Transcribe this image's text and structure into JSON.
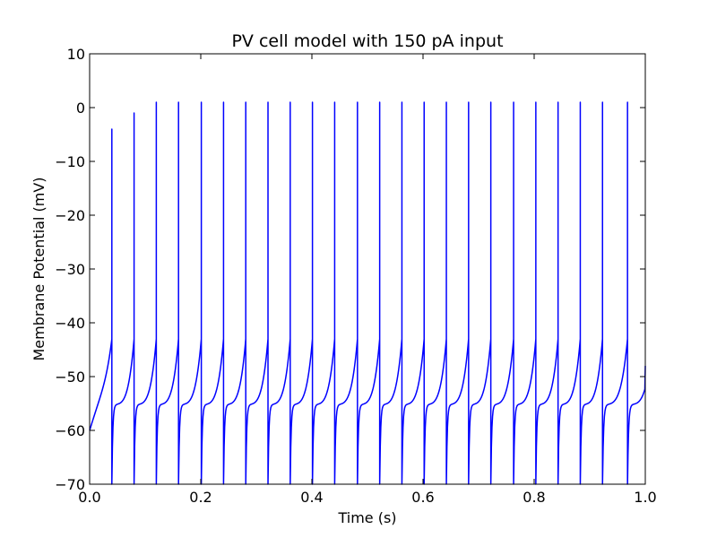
{
  "chart_data": {
    "type": "line",
    "title": "PV cell model with 150 pA input",
    "xlabel": "Time (s)",
    "ylabel": "Membrane Potential (mV)",
    "xlim": [
      0.0,
      1.0
    ],
    "ylim": [
      -70,
      10
    ],
    "x_ticks": [
      "0.0",
      "0.2",
      "0.4",
      "0.6",
      "0.8",
      "1.0"
    ],
    "y_ticks": [
      "−70",
      "−60",
      "−50",
      "−40",
      "−30",
      "−20",
      "−10",
      "0",
      "10"
    ],
    "grid": false,
    "line_color": "#0000ff",
    "series": [
      {
        "initial_potential_mV": -60,
        "threshold_mV": -43,
        "reset_mV": -70,
        "spike_times_s": [
          0.04,
          0.08,
          0.12,
          0.16,
          0.201,
          0.241,
          0.281,
          0.321,
          0.361,
          0.401,
          0.441,
          0.482,
          0.522,
          0.562,
          0.602,
          0.642,
          0.682,
          0.722,
          0.763,
          0.803,
          0.843,
          0.883,
          0.923,
          0.968
        ],
        "spike_peaks_mV": [
          -4,
          -1,
          1,
          1,
          1,
          1,
          1,
          1,
          1,
          1,
          1,
          1,
          1,
          1,
          1,
          1,
          1,
          1,
          1,
          1,
          1,
          1,
          1,
          1
        ],
        "end_potential_mV": -48
      }
    ]
  }
}
